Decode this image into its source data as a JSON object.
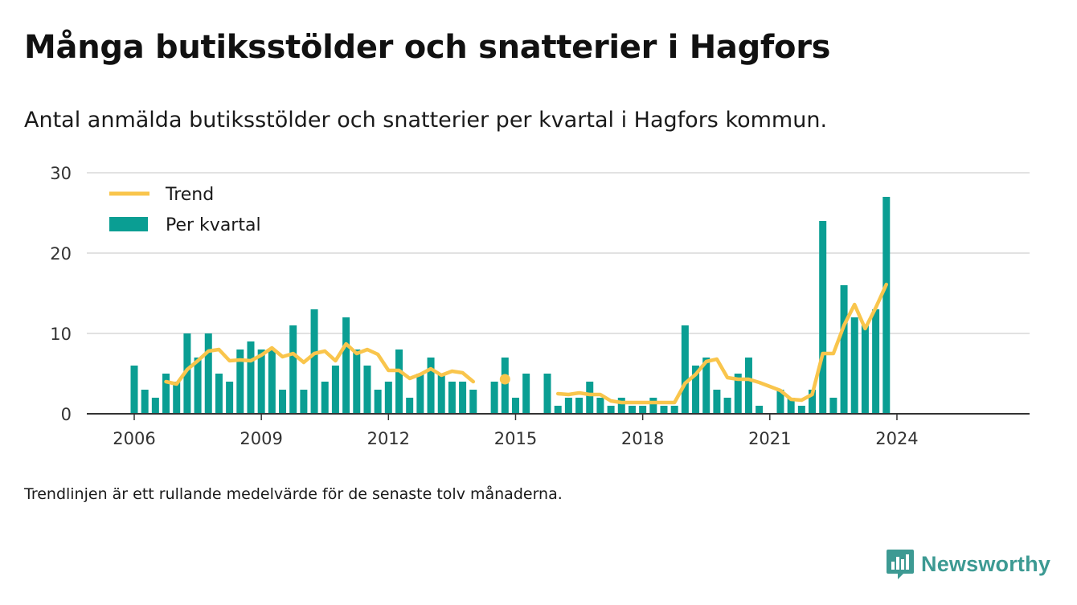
{
  "title": "Många butiksstölder och snatterier i Hagfors",
  "subtitle": "Antal anmälda butiksstölder och snatterier per kvartal i Hagfors kommun.",
  "footnote": "Trendlinjen är ett rullande medelvärde för de senaste tolv månaderna.",
  "brand": {
    "name": "Newsworthy",
    "icon": "newsworthy-logo-icon",
    "color": "#3d9a93"
  },
  "colors": {
    "bars": "#0a9e93",
    "trend": "#f9c54c",
    "grid": "#d9d9d9",
    "axis": "#333333"
  },
  "chart_data": {
    "type": "bar",
    "ylim": [
      0,
      30
    ],
    "y_ticks": [
      "0",
      "10",
      "20",
      "30"
    ],
    "x_ticks": [
      "2006",
      "2009",
      "2012",
      "2015",
      "2018",
      "2021",
      "2024"
    ],
    "legend": {
      "position": "top-left",
      "items": [
        "Trend",
        "Per kvartal"
      ]
    },
    "grid": true,
    "categories": [
      "2006Q1",
      "2006Q2",
      "2006Q3",
      "2006Q4",
      "2007Q1",
      "2007Q2",
      "2007Q3",
      "2007Q4",
      "2008Q1",
      "2008Q2",
      "2008Q3",
      "2008Q4",
      "2009Q1",
      "2009Q2",
      "2009Q3",
      "2009Q4",
      "2010Q1",
      "2010Q2",
      "2010Q3",
      "2010Q4",
      "2011Q1",
      "2011Q2",
      "2011Q3",
      "2011Q4",
      "2012Q1",
      "2012Q2",
      "2012Q3",
      "2012Q4",
      "2013Q1",
      "2013Q2",
      "2013Q3",
      "2013Q4",
      "2014Q1",
      "2014Q2",
      "2014Q3",
      "2014Q4",
      "2015Q1",
      "2015Q2",
      "2015Q3",
      "2015Q4",
      "2016Q1",
      "2016Q2",
      "2016Q3",
      "2016Q4",
      "2017Q1",
      "2017Q2",
      "2017Q3",
      "2017Q4",
      "2018Q1",
      "2018Q2",
      "2018Q3",
      "2018Q4",
      "2019Q1",
      "2019Q2",
      "2019Q3",
      "2019Q4",
      "2020Q1",
      "2020Q2",
      "2020Q3",
      "2020Q4",
      "2021Q1",
      "2021Q2",
      "2021Q3",
      "2021Q4",
      "2022Q1",
      "2022Q2",
      "2022Q3",
      "2022Q4",
      "2023Q1",
      "2023Q2",
      "2023Q3",
      "2023Q4",
      "2024Q1"
    ],
    "series": [
      {
        "name": "Per kvartal",
        "type": "bar",
        "values": [
          6,
          3,
          2,
          5,
          4,
          10,
          7,
          10,
          5,
          4,
          8,
          9,
          8,
          8,
          3,
          11,
          3,
          13,
          4,
          6,
          12,
          8,
          6,
          3,
          4,
          8,
          2,
          5,
          7,
          5,
          4,
          4,
          3,
          null,
          4,
          7,
          2,
          5,
          null,
          5,
          1,
          2,
          2,
          4,
          2,
          1,
          2,
          1,
          1,
          2,
          1,
          1,
          11,
          6,
          7,
          3,
          2,
          5,
          7,
          1,
          null,
          3,
          2,
          1,
          3,
          24,
          2,
          16,
          12,
          11,
          13,
          27,
          null
        ]
      },
      {
        "name": "Trend",
        "type": "line",
        "values": [
          null,
          null,
          null,
          4.0,
          3.7,
          5.5,
          6.6,
          7.8,
          8.0,
          6.6,
          6.7,
          6.6,
          7.3,
          8.2,
          7.1,
          7.5,
          6.4,
          7.5,
          7.8,
          6.6,
          8.7,
          7.5,
          8.0,
          7.4,
          5.4,
          5.4,
          4.4,
          4.9,
          5.6,
          4.8,
          5.3,
          5.1,
          4.0,
          null,
          null,
          4.3,
          null,
          null,
          null,
          null,
          2.5,
          2.4,
          2.6,
          2.4,
          2.4,
          1.6,
          1.4,
          1.4,
          1.4,
          1.4,
          1.4,
          1.4,
          3.8,
          4.9,
          6.5,
          6.8,
          4.5,
          4.3,
          4.3,
          3.9,
          3.4,
          2.9,
          1.8,
          1.7,
          2.4,
          7.5,
          7.5,
          11.0,
          13.6,
          10.6,
          13.2,
          16.1,
          null
        ]
      }
    ]
  }
}
